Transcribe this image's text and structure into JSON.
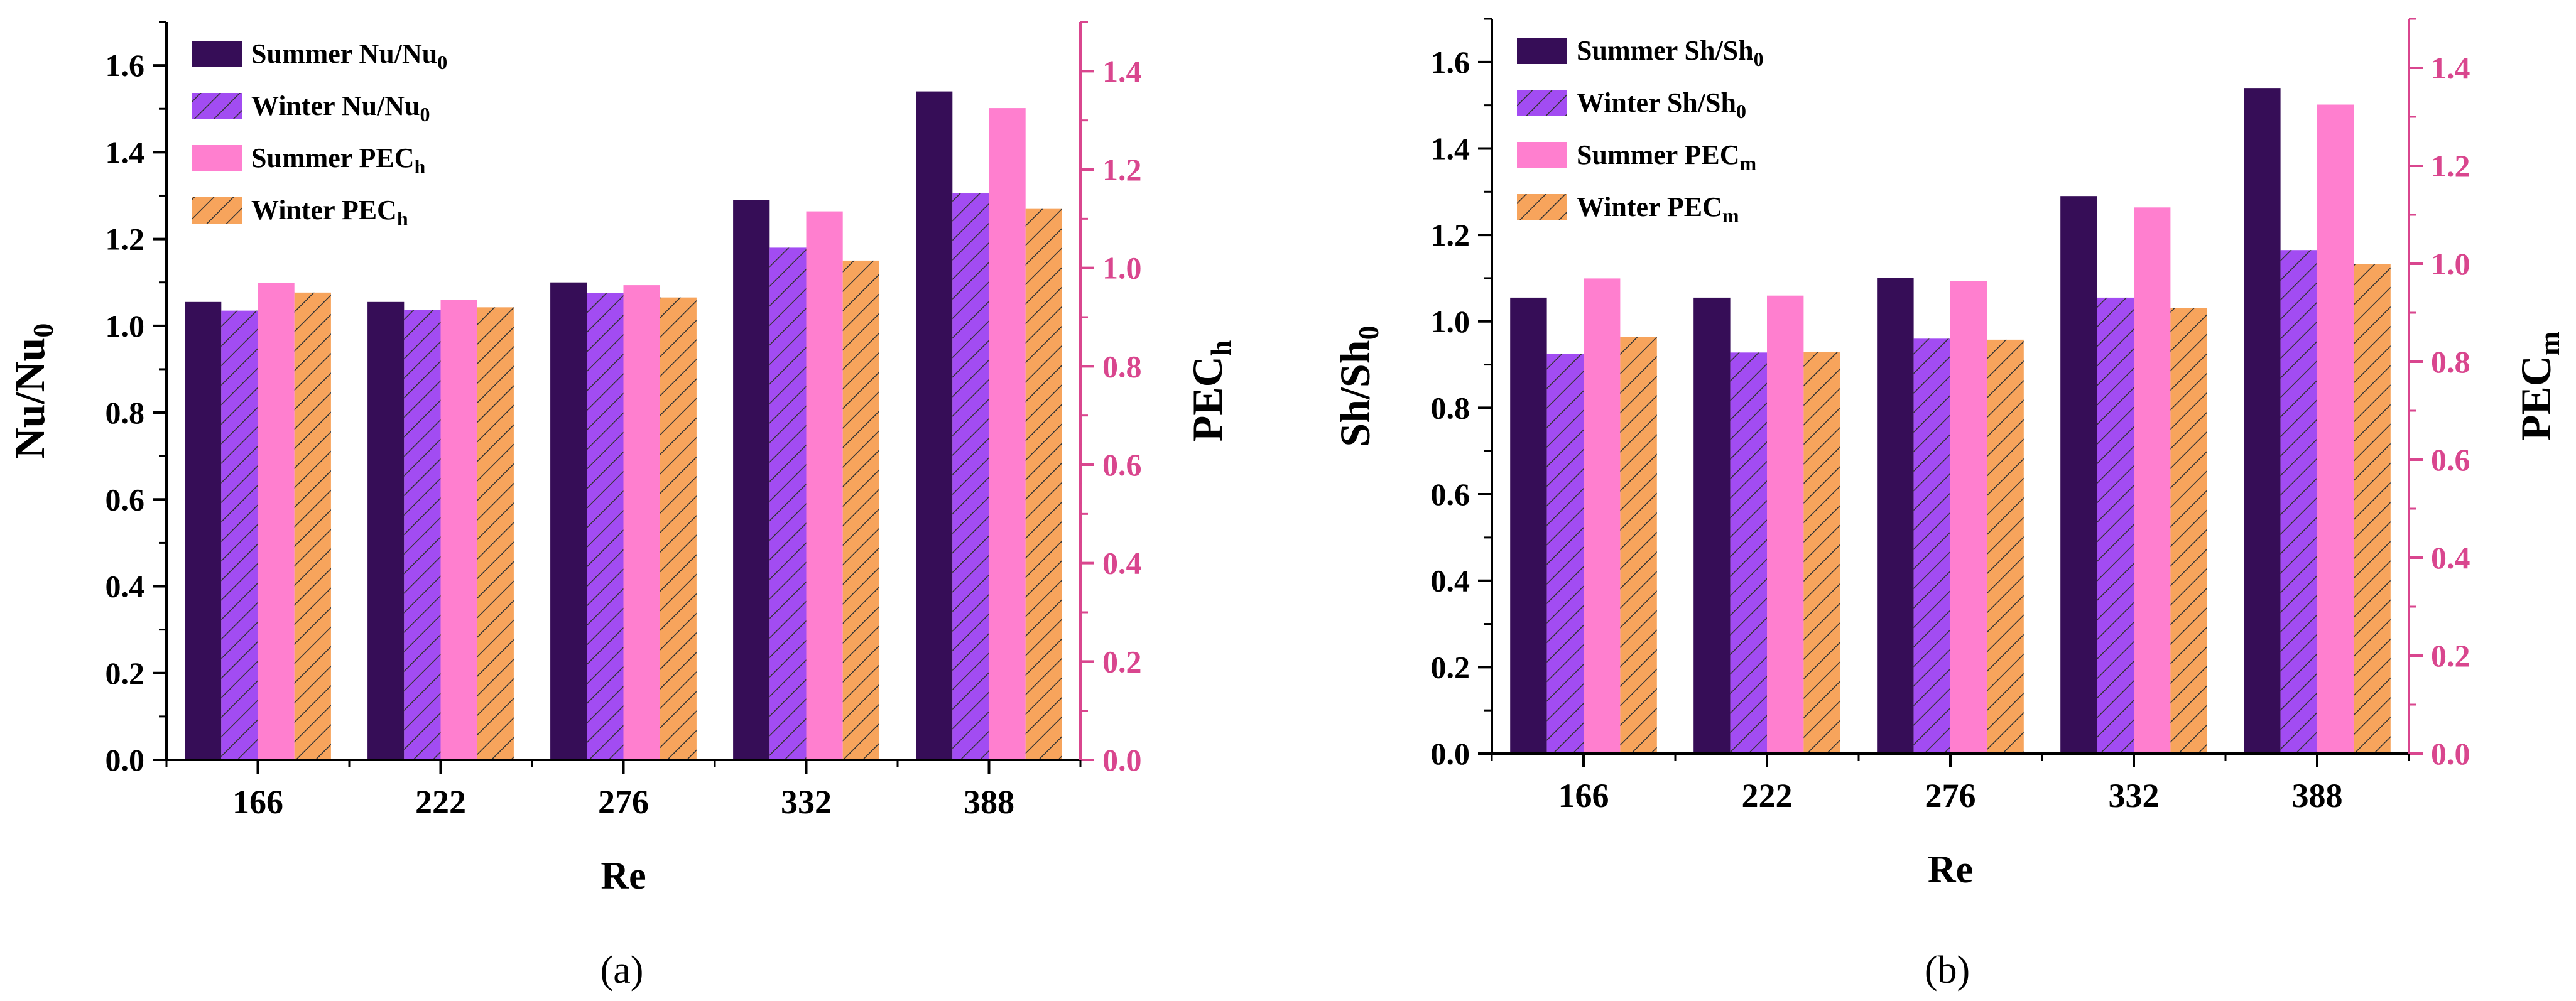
{
  "colors": {
    "summer_ratio": "#360D57",
    "winter_ratio": "#A24CF2",
    "summer_pec": "#FF7FCF",
    "winter_pec": "#F7A45C",
    "right_axis": "#D9468E",
    "hatch": "#333333"
  },
  "chart_data": [
    {
      "type": "bar",
      "caption": "(a)",
      "xlabel": "Re",
      "ylabel": {
        "base": "Nu/Nu",
        "sub": "0"
      },
      "y2label": {
        "base": "PEC",
        "sub": "h"
      },
      "ylim": [
        0,
        1.7
      ],
      "y2lim": [
        0,
        1.5
      ],
      "yticks": [
        "0.0",
        "0.2",
        "0.4",
        "0.6",
        "0.8",
        "1.0",
        "1.2",
        "1.4",
        "1.6"
      ],
      "y2ticks": [
        "0.0",
        "0.2",
        "0.4",
        "0.6",
        "0.8",
        "1.0",
        "1.2",
        "1.4"
      ],
      "categories": [
        "166",
        "222",
        "276",
        "332",
        "388"
      ],
      "series": [
        {
          "name": "Summer Nu/Nu",
          "sub": "0",
          "axis": "left",
          "values": [
            1.055,
            1.055,
            1.1,
            1.29,
            1.54
          ]
        },
        {
          "name": "Winter Nu/Nu",
          "sub": "0",
          "axis": "left",
          "values": [
            1.035,
            1.037,
            1.075,
            1.18,
            1.305
          ]
        },
        {
          "name": "Summer PEC",
          "sub": "h",
          "axis": "right",
          "values": [
            0.97,
            0.935,
            0.965,
            1.115,
            1.325
          ]
        },
        {
          "name": "Winter PEC",
          "sub": "h",
          "axis": "right",
          "values": [
            0.95,
            0.92,
            0.94,
            1.015,
            1.12
          ]
        }
      ],
      "legend": "top-left"
    },
    {
      "type": "bar",
      "caption": "(b)",
      "xlabel": "Re",
      "ylabel": {
        "base": "Sh/Sh",
        "sub": "0"
      },
      "y2label": {
        "base": "PEC",
        "sub": "m"
      },
      "ylim": [
        0,
        1.7
      ],
      "y2lim": [
        0,
        1.5
      ],
      "yticks": [
        "0.0",
        "0.2",
        "0.4",
        "0.6",
        "0.8",
        "1.0",
        "1.2",
        "1.4",
        "1.6"
      ],
      "y2ticks": [
        "0.0",
        "0.2",
        "0.4",
        "0.6",
        "0.8",
        "1.0",
        "1.2",
        "1.4"
      ],
      "categories": [
        "166",
        "222",
        "276",
        "332",
        "388"
      ],
      "series": [
        {
          "name": "Summer Sh/Sh",
          "sub": "0",
          "axis": "left",
          "values": [
            1.055,
            1.055,
            1.1,
            1.29,
            1.54
          ]
        },
        {
          "name": "Winter Sh/Sh",
          "sub": "0",
          "axis": "left",
          "values": [
            0.925,
            0.928,
            0.96,
            1.055,
            1.165
          ]
        },
        {
          "name": "Summer PEC",
          "sub": "m",
          "axis": "right",
          "values": [
            0.97,
            0.935,
            0.965,
            1.115,
            1.325
          ]
        },
        {
          "name": "Winter PEC",
          "sub": "m",
          "axis": "right",
          "values": [
            0.85,
            0.82,
            0.845,
            0.91,
            1.0
          ]
        }
      ],
      "legend": "top-left"
    }
  ]
}
